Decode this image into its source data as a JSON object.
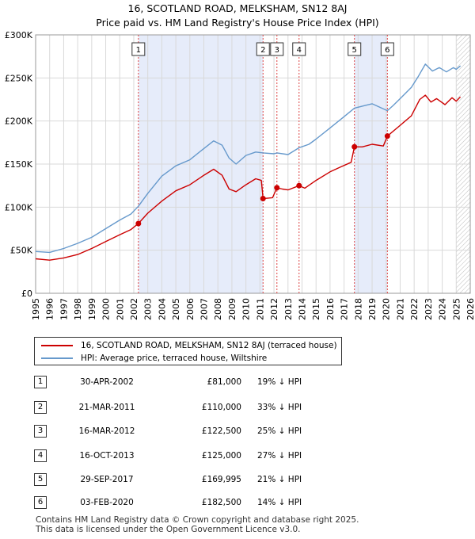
{
  "title_line1": "16, SCOTLAND ROAD, MELKSHAM, SN12 8AJ",
  "title_line2": "Price paid vs. HM Land Registry's House Price Index (HPI)",
  "chart_data": {
    "type": "line",
    "xlim": [
      1995,
      2026
    ],
    "ylim": [
      0,
      300000
    ],
    "y_tick_values": [
      0,
      50000,
      100000,
      150000,
      200000,
      250000,
      300000
    ],
    "y_tick_labels": [
      "£0",
      "£50K",
      "£100K",
      "£150K",
      "£200K",
      "£250K",
      "£300K"
    ],
    "x_tick_values": [
      1995,
      1996,
      1997,
      1998,
      1999,
      2000,
      2001,
      2002,
      2003,
      2004,
      2005,
      2006,
      2007,
      2008,
      2009,
      2010,
      2011,
      2012,
      2013,
      2014,
      2015,
      2016,
      2017,
      2018,
      2019,
      2020,
      2021,
      2022,
      2023,
      2024,
      2025,
      2026
    ],
    "x_tick_labels": [
      "1995",
      "1996",
      "1997",
      "1998",
      "1999",
      "2000",
      "2001",
      "2002",
      "2003",
      "2004",
      "2005",
      "2006",
      "2007",
      "2008",
      "2009",
      "2010",
      "2011",
      "2012",
      "2013",
      "2014",
      "2015",
      "2016",
      "2017",
      "2018",
      "2019",
      "2020",
      "2021",
      "2022",
      "2023",
      "2024",
      "2025",
      "2026"
    ],
    "grid": true,
    "shaded_periods": [
      [
        2002.33,
        2011.22
      ],
      [
        2017.75,
        2020.09
      ]
    ],
    "future_hatch_from": 2025.0,
    "series": [
      {
        "name": "16, SCOTLAND ROAD, MELKSHAM, SN12 8AJ (terraced house)",
        "color": "#cc0000",
        "points": [
          [
            1995.0,
            40000
          ],
          [
            1996.0,
            38500
          ],
          [
            1997.0,
            41000
          ],
          [
            1998.0,
            45000
          ],
          [
            1999.0,
            52000
          ],
          [
            2000.0,
            60000
          ],
          [
            2001.0,
            68000
          ],
          [
            2001.8,
            74000
          ],
          [
            2002.33,
            81000
          ],
          [
            2003.0,
            93000
          ],
          [
            2004.0,
            107000
          ],
          [
            2005.0,
            119000
          ],
          [
            2006.0,
            126000
          ],
          [
            2007.0,
            137000
          ],
          [
            2007.7,
            144000
          ],
          [
            2008.3,
            137000
          ],
          [
            2008.8,
            121000
          ],
          [
            2009.3,
            118000
          ],
          [
            2010.0,
            126000
          ],
          [
            2010.7,
            133000
          ],
          [
            2011.1,
            131000
          ],
          [
            2011.22,
            110000
          ],
          [
            2011.6,
            110500
          ],
          [
            2011.9,
            111000
          ],
          [
            2012.21,
            122500
          ],
          [
            2012.6,
            121000
          ],
          [
            2013.0,
            120000
          ],
          [
            2013.79,
            125000
          ],
          [
            2014.2,
            122000
          ],
          [
            2015.0,
            131000
          ],
          [
            2016.0,
            141000
          ],
          [
            2016.8,
            147000
          ],
          [
            2017.5,
            152000
          ],
          [
            2017.74,
            169995
          ],
          [
            2018.3,
            170000
          ],
          [
            2019.0,
            173000
          ],
          [
            2019.8,
            171000
          ],
          [
            2020.09,
            182500
          ],
          [
            2021.0,
            195000
          ],
          [
            2021.8,
            206000
          ],
          [
            2022.4,
            225000
          ],
          [
            2022.8,
            230000
          ],
          [
            2023.2,
            222000
          ],
          [
            2023.6,
            226000
          ],
          [
            2024.2,
            219000
          ],
          [
            2024.7,
            227000
          ],
          [
            2025.0,
            223000
          ],
          [
            2025.3,
            228000
          ]
        ]
      },
      {
        "name": "HPI: Average price, terraced house, Wiltshire",
        "color": "#6699cc",
        "points": [
          [
            1995.0,
            48500
          ],
          [
            1996.0,
            47500
          ],
          [
            1997.0,
            52000
          ],
          [
            1998.0,
            58000
          ],
          [
            1999.0,
            65000
          ],
          [
            2000.0,
            75000
          ],
          [
            2001.0,
            85000
          ],
          [
            2001.8,
            92000
          ],
          [
            2002.33,
            101000
          ],
          [
            2003.0,
            116000
          ],
          [
            2004.0,
            136000
          ],
          [
            2005.0,
            148000
          ],
          [
            2006.0,
            155000
          ],
          [
            2007.0,
            168000
          ],
          [
            2007.7,
            177000
          ],
          [
            2008.3,
            172000
          ],
          [
            2008.8,
            157000
          ],
          [
            2009.3,
            150000
          ],
          [
            2010.0,
            160000
          ],
          [
            2010.7,
            164000
          ],
          [
            2011.22,
            163000
          ],
          [
            2012.0,
            162000
          ],
          [
            2012.21,
            163000
          ],
          [
            2013.0,
            161000
          ],
          [
            2013.79,
            169000
          ],
          [
            2014.5,
            173000
          ],
          [
            2015.0,
            179000
          ],
          [
            2016.0,
            192000
          ],
          [
            2017.0,
            205000
          ],
          [
            2017.74,
            215000
          ],
          [
            2018.5,
            218000
          ],
          [
            2019.0,
            220000
          ],
          [
            2020.09,
            212000
          ],
          [
            2020.5,
            218000
          ],
          [
            2021.0,
            226000
          ],
          [
            2021.8,
            239000
          ],
          [
            2022.3,
            252000
          ],
          [
            2022.8,
            266000
          ],
          [
            2023.3,
            258000
          ],
          [
            2023.8,
            262000
          ],
          [
            2024.3,
            257000
          ],
          [
            2024.8,
            262000
          ],
          [
            2025.0,
            260000
          ],
          [
            2025.3,
            264000
          ]
        ]
      }
    ],
    "sale_markers": [
      {
        "label": "1",
        "x": 2002.33,
        "y": 81000
      },
      {
        "label": "2",
        "x": 2011.22,
        "y": 110000
      },
      {
        "label": "3",
        "x": 2012.21,
        "y": 122500
      },
      {
        "label": "4",
        "x": 2013.79,
        "y": 125000
      },
      {
        "label": "5",
        "x": 2017.74,
        "y": 169995
      },
      {
        "label": "6",
        "x": 2020.09,
        "y": 182500
      }
    ]
  },
  "legend": {
    "property_label": "16, SCOTLAND ROAD, MELKSHAM, SN12 8AJ (terraced house)",
    "property_color": "#cc0000",
    "hpi_label": "HPI: Average price, terraced house, Wiltshire",
    "hpi_color": "#6699cc"
  },
  "sales": [
    {
      "num": "1",
      "date": "30-APR-2002",
      "price": "£81,000",
      "delta": "19% ↓ HPI"
    },
    {
      "num": "2",
      "date": "21-MAR-2011",
      "price": "£110,000",
      "delta": "33% ↓ HPI"
    },
    {
      "num": "3",
      "date": "16-MAR-2012",
      "price": "£122,500",
      "delta": "25% ↓ HPI"
    },
    {
      "num": "4",
      "date": "16-OCT-2013",
      "price": "£125,000",
      "delta": "27% ↓ HPI"
    },
    {
      "num": "5",
      "date": "29-SEP-2017",
      "price": "£169,995",
      "delta": "21% ↓ HPI"
    },
    {
      "num": "6",
      "date": "03-FEB-2020",
      "price": "£182,500",
      "delta": "14% ↓ HPI"
    }
  ],
  "footer_line1": "Contains HM Land Registry data © Crown copyright and database right 2025.",
  "footer_line2": "This data is licensed under the Open Government Licence v3.0."
}
